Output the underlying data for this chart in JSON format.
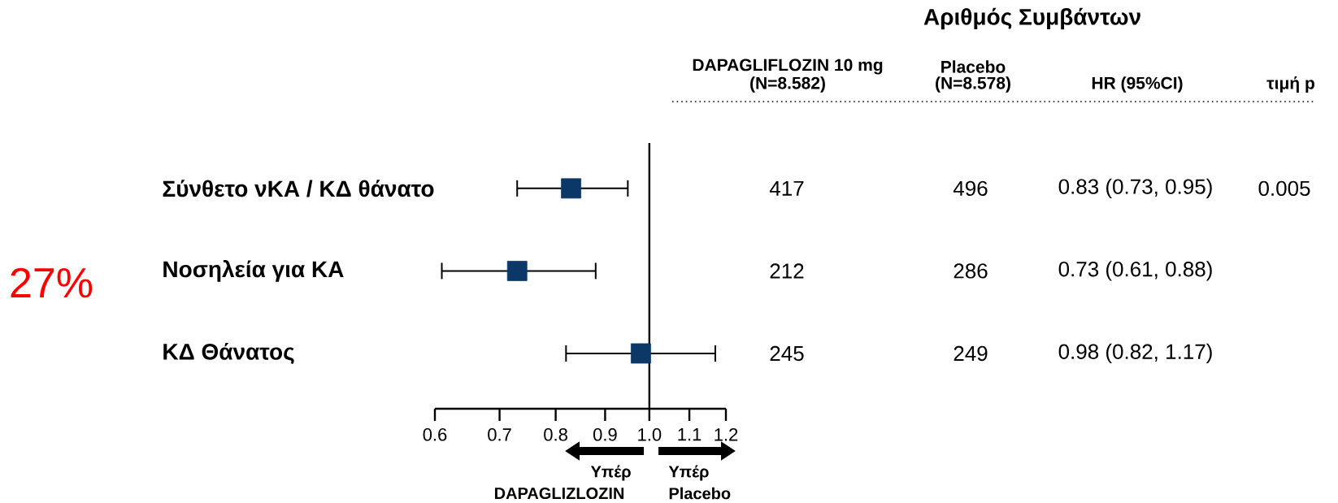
{
  "chart_data": {
    "type": "scatter",
    "orientation": "horizontal",
    "log": "x",
    "title": "Αριθμός Συμβάντων",
    "categories": [
      "Σύνθετο νΚΑ / ΚΔ θάνατο",
      "Νοσηλεία για ΚΑ",
      "ΚΔ Θάνατος"
    ],
    "values": [
      0.83,
      0.73,
      0.98
    ],
    "errors": [
      [
        0.73,
        0.95
      ],
      [
        0.61,
        0.88
      ],
      [
        0.82,
        1.17
      ]
    ],
    "value_labels": [
      "0.83 (0.73, 0.95)",
      "0.73 (0.61, 0.88)",
      "0.98 (0.82, 1.17)"
    ],
    "color": "#0b3867",
    "marker": "square",
    "xlim": [
      0.6,
      1.2
    ],
    "xticks": [
      0.6,
      0.7,
      0.8,
      0.9,
      {
        "value": 1,
        "label": "1.0"
      },
      1.1,
      1.2
    ],
    "ref_lines": [
      {
        "axis": "x",
        "value": 1
      }
    ],
    "annotations": [
      "DAPAGLIFLOZIN 10 mg",
      "(N=8.582)",
      "Placebo",
      "(N=8.578)",
      "HR (95%CI)",
      "τιμή p",
      "417",
      "496",
      "0.005",
      "212",
      "286",
      "245",
      "249",
      "27%",
      "Υπέρ",
      "DAPAGLIZLOZIN",
      "Υπέρ",
      "Placebo"
    ]
  }
}
